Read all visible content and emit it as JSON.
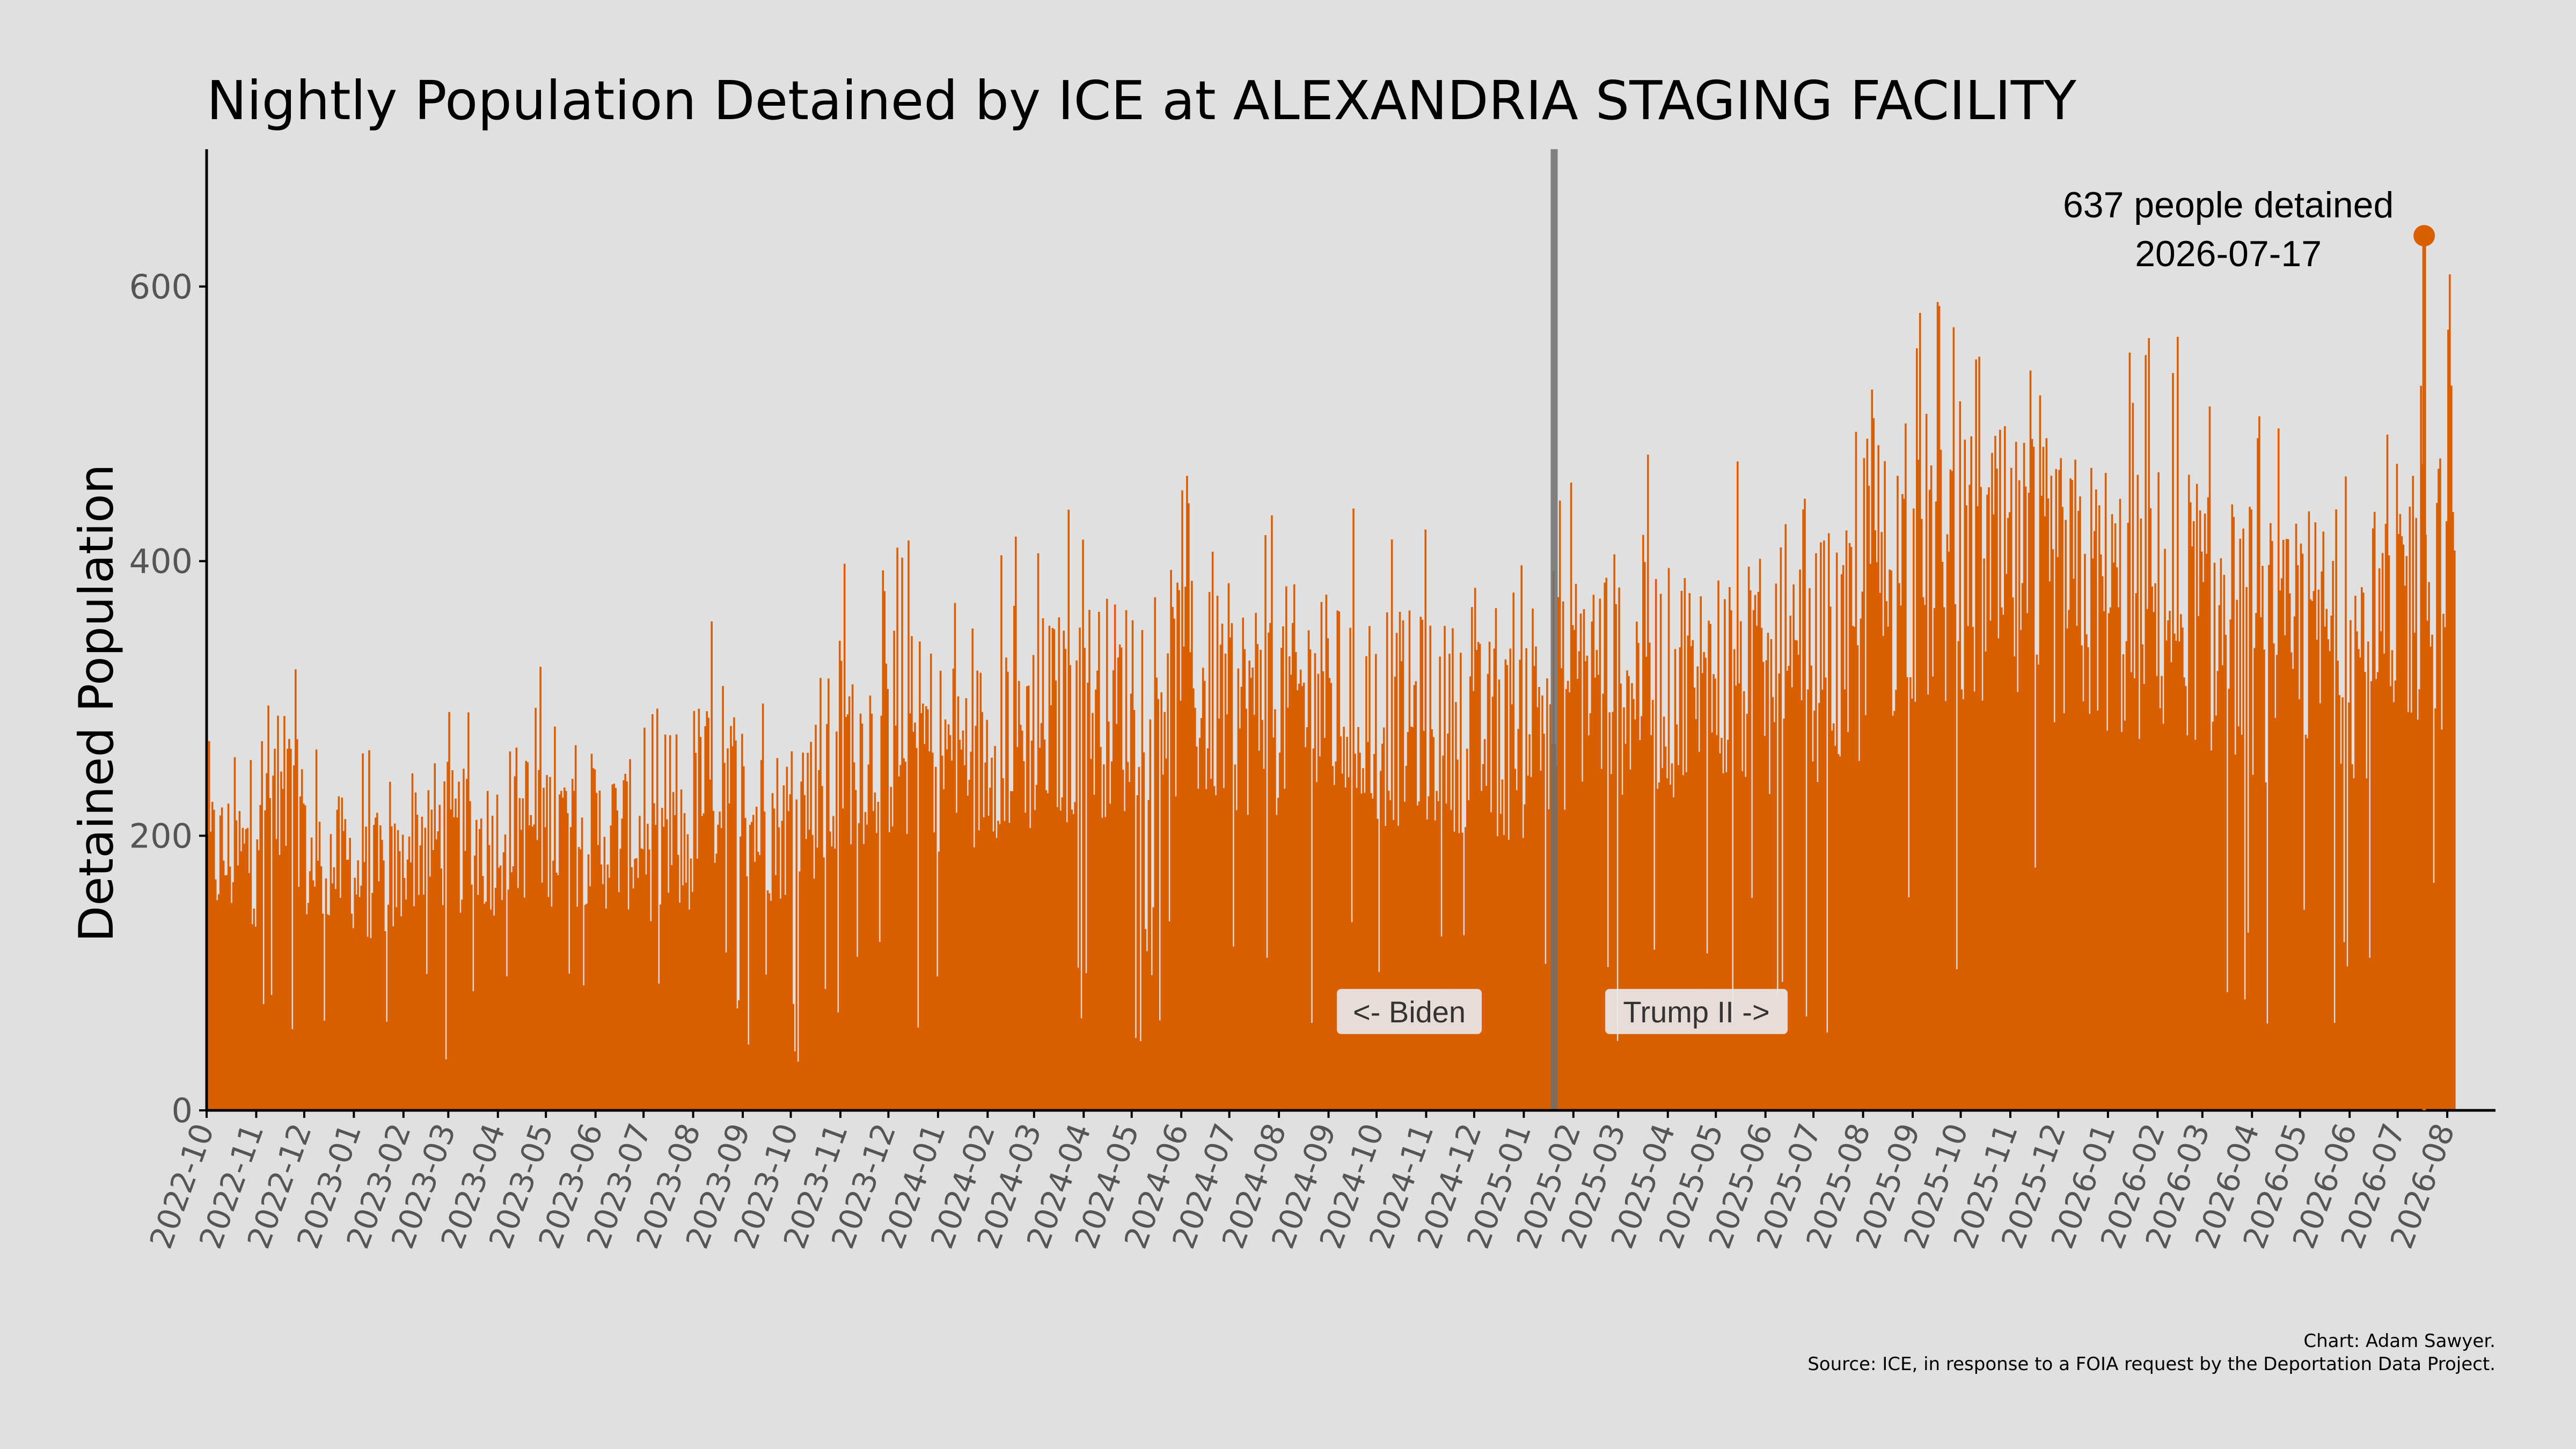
{
  "chart_data": {
    "type": "bar",
    "title": "Nightly Population Detained by ICE at ALEXANDRIA STAGING FACILITY",
    "ylabel": "Detained Population",
    "xlabel": "",
    "ylim": [
      0,
      700
    ],
    "yticks": [
      0,
      200,
      400,
      600
    ],
    "x_start": "2022-10-01",
    "x_end": "2026-08-06",
    "x_tick_labels": [
      "2022-10",
      "2022-11",
      "2022-12",
      "2023-01",
      "2023-02",
      "2023-03",
      "2023-04",
      "2023-05",
      "2023-06",
      "2023-07",
      "2023-08",
      "2023-09",
      "2023-10",
      "2023-11",
      "2023-12",
      "2024-01",
      "2024-02",
      "2024-03",
      "2024-04",
      "2024-05",
      "2024-06",
      "2024-07",
      "2024-08",
      "2024-09",
      "2024-10",
      "2024-11",
      "2024-12",
      "2025-01",
      "2025-02",
      "2025-03",
      "2025-04",
      "2025-05",
      "2025-06",
      "2025-07",
      "2025-08",
      "2025-09",
      "2025-10",
      "2025-11",
      "2025-12",
      "2026-01",
      "2026-02",
      "2026-03",
      "2026-04",
      "2026-05",
      "2026-06",
      "2026-07",
      "2026-08"
    ],
    "monthly_typical_population": [
      {
        "month": "2022-10",
        "value": 185
      },
      {
        "month": "2022-11",
        "value": 225
      },
      {
        "month": "2022-12",
        "value": 180
      },
      {
        "month": "2023-01",
        "value": 170
      },
      {
        "month": "2023-02",
        "value": 200
      },
      {
        "month": "2023-03",
        "value": 195
      },
      {
        "month": "2023-04",
        "value": 210
      },
      {
        "month": "2023-05",
        "value": 205
      },
      {
        "month": "2023-06",
        "value": 200
      },
      {
        "month": "2023-07",
        "value": 190
      },
      {
        "month": "2023-08",
        "value": 235
      },
      {
        "month": "2023-09",
        "value": 210
      },
      {
        "month": "2023-10",
        "value": 230
      },
      {
        "month": "2023-11",
        "value": 265
      },
      {
        "month": "2023-12",
        "value": 270
      },
      {
        "month": "2024-01",
        "value": 260
      },
      {
        "month": "2024-02",
        "value": 275
      },
      {
        "month": "2024-03",
        "value": 285
      },
      {
        "month": "2024-04",
        "value": 295
      },
      {
        "month": "2024-05",
        "value": 310
      },
      {
        "month": "2024-06",
        "value": 300
      },
      {
        "month": "2024-07",
        "value": 295
      },
      {
        "month": "2024-08",
        "value": 300
      },
      {
        "month": "2024-09",
        "value": 290
      },
      {
        "month": "2024-10",
        "value": 285
      },
      {
        "month": "2024-11",
        "value": 280
      },
      {
        "month": "2024-12",
        "value": 270
      },
      {
        "month": "2025-01",
        "value": 300
      },
      {
        "month": "2025-02",
        "value": 320
      },
      {
        "month": "2025-03",
        "value": 315
      },
      {
        "month": "2025-04",
        "value": 310
      },
      {
        "month": "2025-05",
        "value": 315
      },
      {
        "month": "2025-06",
        "value": 300
      },
      {
        "month": "2025-07",
        "value": 330
      },
      {
        "month": "2025-08",
        "value": 390
      },
      {
        "month": "2025-09",
        "value": 400
      },
      {
        "month": "2025-10",
        "value": 390
      },
      {
        "month": "2025-11",
        "value": 385
      },
      {
        "month": "2025-12",
        "value": 375
      },
      {
        "month": "2026-01",
        "value": 365
      },
      {
        "month": "2026-02",
        "value": 370
      },
      {
        "month": "2026-03",
        "value": 350
      },
      {
        "month": "2026-04",
        "value": 330
      },
      {
        "month": "2026-05",
        "value": 345
      },
      {
        "month": "2026-06",
        "value": 335
      },
      {
        "month": "2026-07",
        "value": 380
      },
      {
        "month": "2026-08",
        "value": 450
      }
    ],
    "peak": {
      "date": "2026-07-17",
      "value": 637
    },
    "transition_date": "2025-01-20",
    "annotations": {
      "peak_label": "637 people detained",
      "peak_date_label": "2026-07-17",
      "left_era": "<- Biden",
      "right_era": "Trump II ->"
    },
    "credits": {
      "line1": "Chart: Adam Sawyer.",
      "line2": "Source: ICE, in response to a FOIA request by the Deportation Data Project."
    },
    "colors": {
      "bar": "#d95f02",
      "transition_line": "#7a7a7a",
      "background": "#e0e0e0"
    },
    "grid": false
  }
}
